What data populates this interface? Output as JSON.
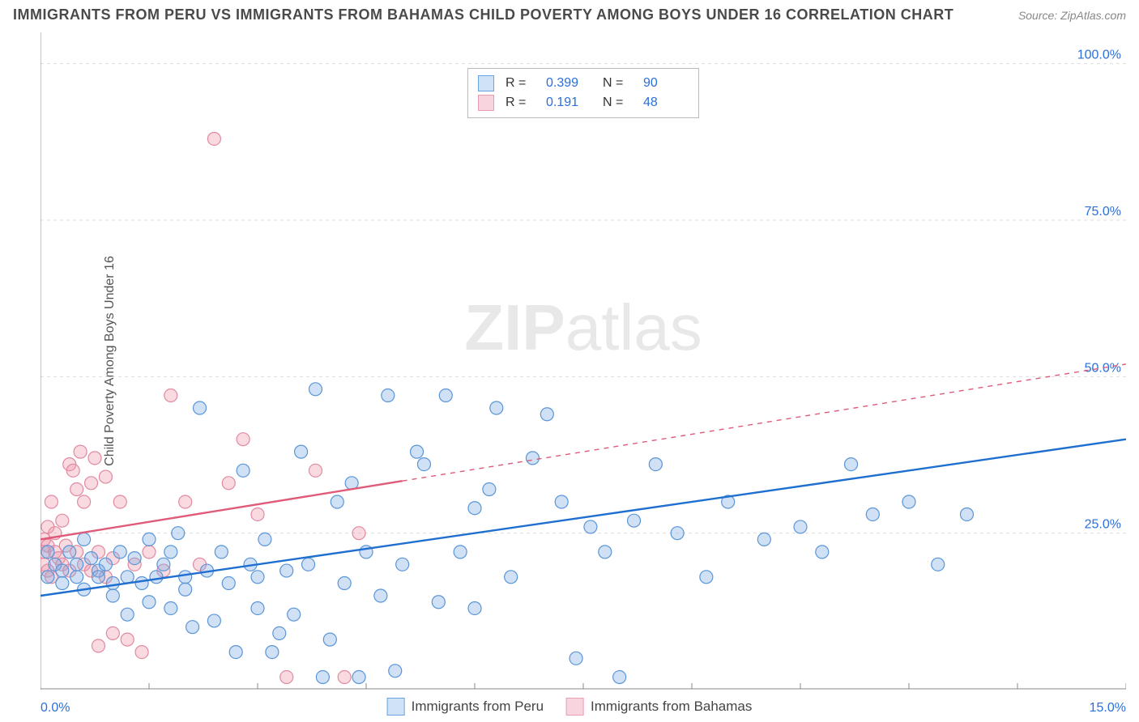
{
  "header": {
    "title": "IMMIGRANTS FROM PERU VS IMMIGRANTS FROM BAHAMAS CHILD POVERTY AMONG BOYS UNDER 16 CORRELATION CHART",
    "source_label": "Source:",
    "source_name": "ZipAtlas.com"
  },
  "watermark": {
    "bold": "ZIP",
    "rest": "atlas"
  },
  "chart": {
    "type": "scatter",
    "ylabel": "Child Poverty Among Boys Under 16",
    "xlim": [
      0,
      15
    ],
    "ylim": [
      0,
      105
    ],
    "x_ticks": [
      0,
      15
    ],
    "x_tick_labels": [
      "0.0%",
      "15.0%"
    ],
    "y_gridlines": [
      25,
      50,
      75,
      100
    ],
    "y_grid_labels": [
      "25.0%",
      "50.0%",
      "75.0%",
      "100.0%"
    ],
    "background_color": "#ffffff",
    "grid_color": "#dddddd",
    "axis_color": "#888888",
    "y_label_color": "#2b6fd8",
    "marker_radius": 8,
    "marker_stroke_width": 1.2,
    "line_width": 2.4
  },
  "series": {
    "peru": {
      "label": "Immigrants from Peru",
      "fill": "rgba(120,170,230,0.35)",
      "stroke": "#5a95d6",
      "line_color": "#1f6fd0",
      "swatch_fill": "#cfe2f7",
      "swatch_border": "#6aa3df",
      "r_value": "0.399",
      "n_value": "90",
      "trend": {
        "x1": 0,
        "y1": 15,
        "x2": 15,
        "y2": 40,
        "solid_until_x": 15
      },
      "points": [
        [
          0.1,
          18
        ],
        [
          0.1,
          22
        ],
        [
          0.2,
          20
        ],
        [
          0.3,
          17
        ],
        [
          0.3,
          19
        ],
        [
          0.4,
          22
        ],
        [
          0.5,
          18
        ],
        [
          0.5,
          20
        ],
        [
          0.6,
          16
        ],
        [
          0.6,
          24
        ],
        [
          0.7,
          21
        ],
        [
          0.8,
          19
        ],
        [
          0.8,
          18
        ],
        [
          0.9,
          20
        ],
        [
          1.0,
          17
        ],
        [
          1.0,
          15
        ],
        [
          1.1,
          22
        ],
        [
          1.2,
          18
        ],
        [
          1.2,
          12
        ],
        [
          1.3,
          21
        ],
        [
          1.4,
          17
        ],
        [
          1.5,
          14
        ],
        [
          1.5,
          24
        ],
        [
          1.6,
          18
        ],
        [
          1.7,
          20
        ],
        [
          1.8,
          22
        ],
        [
          1.8,
          13
        ],
        [
          1.9,
          25
        ],
        [
          2.0,
          18
        ],
        [
          2.0,
          16
        ],
        [
          2.1,
          10
        ],
        [
          2.2,
          45
        ],
        [
          2.3,
          19
        ],
        [
          2.4,
          11
        ],
        [
          2.5,
          22
        ],
        [
          2.6,
          17
        ],
        [
          2.7,
          6
        ],
        [
          2.8,
          35
        ],
        [
          2.9,
          20
        ],
        [
          3.0,
          18
        ],
        [
          3.0,
          13
        ],
        [
          3.1,
          24
        ],
        [
          3.2,
          6
        ],
        [
          3.3,
          9
        ],
        [
          3.4,
          19
        ],
        [
          3.5,
          12
        ],
        [
          3.6,
          38
        ],
        [
          3.7,
          20
        ],
        [
          3.8,
          48
        ],
        [
          3.9,
          2
        ],
        [
          4.0,
          8
        ],
        [
          4.1,
          30
        ],
        [
          4.2,
          17
        ],
        [
          4.3,
          33
        ],
        [
          4.4,
          2
        ],
        [
          4.5,
          22
        ],
        [
          4.7,
          15
        ],
        [
          4.8,
          47
        ],
        [
          4.9,
          3
        ],
        [
          5.0,
          20
        ],
        [
          5.2,
          38
        ],
        [
          5.3,
          36
        ],
        [
          5.5,
          14
        ],
        [
          5.6,
          47
        ],
        [
          5.8,
          22
        ],
        [
          6.0,
          29
        ],
        [
          6.0,
          13
        ],
        [
          6.2,
          32
        ],
        [
          6.3,
          45
        ],
        [
          6.5,
          18
        ],
        [
          6.8,
          37
        ],
        [
          7.0,
          44
        ],
        [
          7.2,
          30
        ],
        [
          7.4,
          5
        ],
        [
          7.6,
          26
        ],
        [
          7.8,
          22
        ],
        [
          8.0,
          2
        ],
        [
          8.2,
          27
        ],
        [
          8.5,
          36
        ],
        [
          8.8,
          25
        ],
        [
          9.2,
          18
        ],
        [
          9.5,
          30
        ],
        [
          10.0,
          24
        ],
        [
          10.5,
          26
        ],
        [
          10.8,
          22
        ],
        [
          11.2,
          36
        ],
        [
          11.5,
          28
        ],
        [
          12.0,
          30
        ],
        [
          12.4,
          20
        ],
        [
          12.8,
          28
        ]
      ]
    },
    "bahamas": {
      "label": "Immigrants from Bahamas",
      "fill": "rgba(237,150,170,0.35)",
      "stroke": "#e08aa0",
      "line_color": "#e05a7a",
      "swatch_fill": "#f8d5de",
      "swatch_border": "#e89eb0",
      "r_value": "0.191",
      "n_value": "48",
      "trend": {
        "x1": 0,
        "y1": 24,
        "x2": 15,
        "y2": 52,
        "solid_until_x": 5
      },
      "points": [
        [
          0.05,
          22
        ],
        [
          0.05,
          20
        ],
        [
          0.05,
          24
        ],
        [
          0.1,
          19
        ],
        [
          0.1,
          23
        ],
        [
          0.1,
          26
        ],
        [
          0.15,
          18
        ],
        [
          0.15,
          30
        ],
        [
          0.2,
          22
        ],
        [
          0.2,
          25
        ],
        [
          0.25,
          21
        ],
        [
          0.3,
          20
        ],
        [
          0.3,
          27
        ],
        [
          0.35,
          23
        ],
        [
          0.4,
          19
        ],
        [
          0.4,
          36
        ],
        [
          0.45,
          35
        ],
        [
          0.5,
          22
        ],
        [
          0.5,
          32
        ],
        [
          0.55,
          38
        ],
        [
          0.6,
          20
        ],
        [
          0.6,
          30
        ],
        [
          0.7,
          19
        ],
        [
          0.7,
          33
        ],
        [
          0.75,
          37
        ],
        [
          0.8,
          22
        ],
        [
          0.8,
          7
        ],
        [
          0.9,
          18
        ],
        [
          0.9,
          34
        ],
        [
          1.0,
          21
        ],
        [
          1.0,
          9
        ],
        [
          1.1,
          30
        ],
        [
          1.2,
          8
        ],
        [
          1.3,
          20
        ],
        [
          1.4,
          6
        ],
        [
          1.5,
          22
        ],
        [
          1.7,
          19
        ],
        [
          1.8,
          47
        ],
        [
          2.0,
          30
        ],
        [
          2.2,
          20
        ],
        [
          2.4,
          88
        ],
        [
          2.6,
          33
        ],
        [
          2.8,
          40
        ],
        [
          3.0,
          28
        ],
        [
          3.4,
          2
        ],
        [
          3.8,
          35
        ],
        [
          4.2,
          2
        ],
        [
          4.4,
          25
        ]
      ]
    }
  },
  "legend_top": {
    "r_label": "R =",
    "n_label": "N ="
  },
  "legend_bottom": {
    "items": [
      "peru",
      "bahamas"
    ]
  }
}
